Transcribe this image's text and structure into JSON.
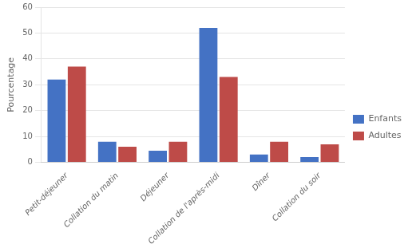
{
  "chart_data": {
    "type": "bar",
    "categories": [
      "Petit-déjeuner",
      "Collation du matin",
      "Déjeuner",
      "Collation de l'après-midi",
      "Dîner",
      "Collation du soir"
    ],
    "series": [
      {
        "name": "Enfants",
        "color": "#4472C4",
        "values": [
          32,
          8,
          4.5,
          52,
          3,
          2
        ]
      },
      {
        "name": "Adultes",
        "color": "#BE4B48",
        "values": [
          37,
          6,
          8,
          33,
          8,
          7
        ]
      }
    ],
    "ylabel": "Pourcentage",
    "ylim": [
      0,
      60
    ],
    "yticks": [
      0,
      10,
      20,
      30,
      40,
      50,
      60
    ],
    "grid": true,
    "legend": "right"
  }
}
